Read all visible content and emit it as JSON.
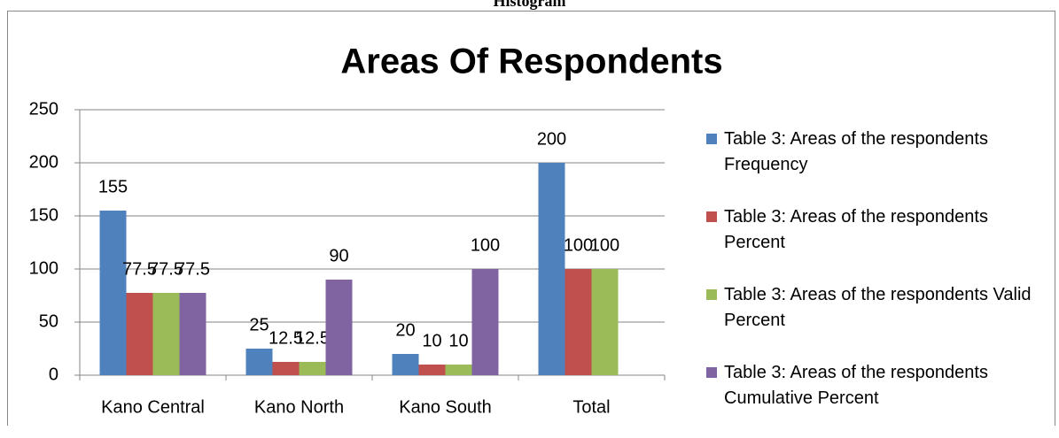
{
  "heading": "Histogram",
  "chart_data": {
    "type": "bar",
    "title": "Areas Of Respondents",
    "categories": [
      "Kano Central",
      "Kano North",
      "Kano South",
      "Total"
    ],
    "series": [
      {
        "name": "Table 3: Areas of the respondents Frequency",
        "color": "#4f81bd",
        "values": [
          155,
          25,
          20,
          200
        ]
      },
      {
        "name": "Table 3: Areas of the respondents Percent",
        "color": "#c0504d",
        "values": [
          77.5,
          12.5,
          10,
          100
        ]
      },
      {
        "name": "Table 3: Areas of the respondents Valid Percent",
        "color": "#9bbb59",
        "values": [
          77.5,
          12.5,
          10,
          100
        ]
      },
      {
        "name": "Table 3: Areas of the respondents Cumulative Percent",
        "color": "#8064a2",
        "values": [
          77.5,
          90,
          100,
          null
        ]
      }
    ],
    "ylim": [
      0,
      250
    ],
    "yticks": [
      0,
      50,
      100,
      150,
      200,
      250
    ],
    "grid": true,
    "legend": "right"
  }
}
